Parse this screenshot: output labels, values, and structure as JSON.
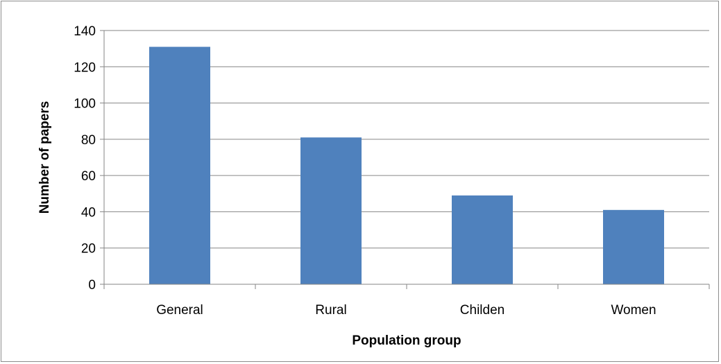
{
  "chart_data": {
    "type": "bar",
    "title": "",
    "xlabel": "Population group",
    "ylabel": "Number of papers",
    "categories": [
      "General",
      "Rural",
      "Childen",
      "Women"
    ],
    "series": [
      {
        "values": [
          131,
          81,
          49,
          41
        ],
        "color": "#4f81bd"
      }
    ],
    "ylim": [
      0,
      140
    ],
    "yticks": [
      "0",
      "20",
      "40",
      "60",
      "80",
      "100",
      "120",
      "140"
    ],
    "grid": true,
    "legend": "none"
  }
}
